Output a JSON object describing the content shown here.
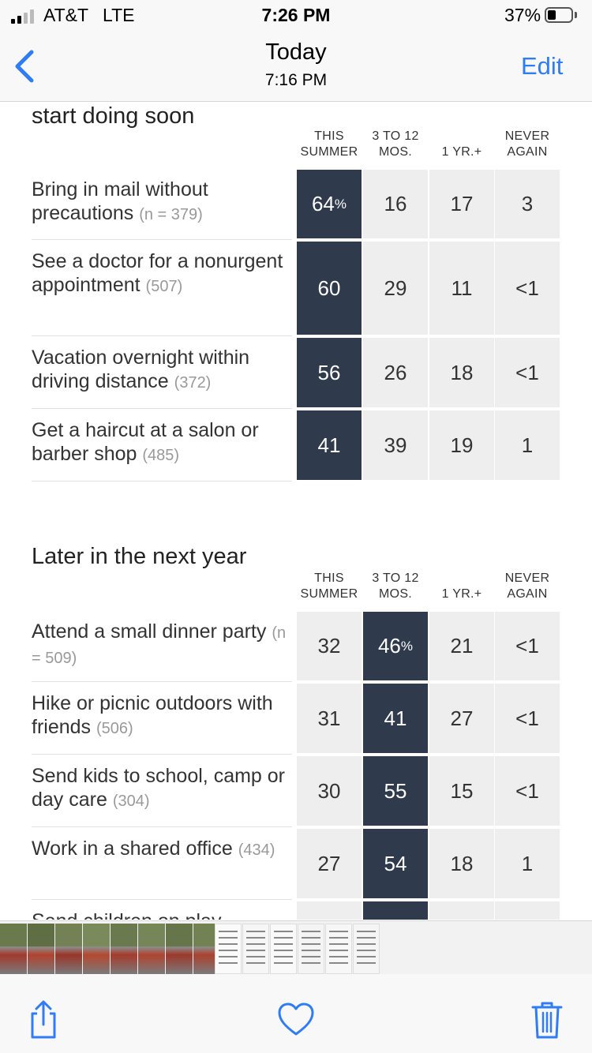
{
  "status_bar": {
    "carrier": "AT&T",
    "network": "LTE",
    "time": "7:26 PM",
    "battery": "37%",
    "battery_level": 0.37
  },
  "nav": {
    "title": "Today",
    "subtitle": "7:16 PM",
    "edit_label": "Edit",
    "back_icon": "chevron-left-icon"
  },
  "columns": [
    {
      "line1": "THIS",
      "line2": "SUMMER"
    },
    {
      "line1": "3 TO 12",
      "line2": "MOS."
    },
    {
      "line1": "",
      "line2": "1 YR.+"
    },
    {
      "line1": "NEVER",
      "line2": "AGAIN"
    }
  ],
  "sections": [
    {
      "title": "start doing soon",
      "rows": [
        {
          "label": "Bring in mail without precautions",
          "n": "(n = 379)",
          "values": [
            "64",
            "16",
            "17",
            "3"
          ],
          "suffix": "%",
          "highlight": 0
        },
        {
          "label": "See a doctor for a nonurgent appointment",
          "n": "(507)",
          "values": [
            "60",
            "29",
            "11",
            "<1"
          ],
          "highlight": 0
        },
        {
          "label": "Vacation overnight within driving distance",
          "n": "(372)",
          "values": [
            "56",
            "26",
            "18",
            "<1"
          ],
          "highlight": 0
        },
        {
          "label": "Get a haircut at a salon or barber shop",
          "n": "(485)",
          "values": [
            "41",
            "39",
            "19",
            "1"
          ],
          "highlight": 0
        }
      ]
    },
    {
      "title": "Later in the next year",
      "rows": [
        {
          "label": "Attend a small dinner party",
          "n": "(n = 509)",
          "values": [
            "32",
            "46",
            "21",
            "<1"
          ],
          "suffix": "%",
          "highlight": 1
        },
        {
          "label": "Hike or picnic outdoors with friends",
          "n": "(506)",
          "values": [
            "31",
            "41",
            "27",
            "<1"
          ],
          "highlight": 1
        },
        {
          "label": "Send kids to school, camp or day care",
          "n": "(304)",
          "values": [
            "30",
            "55",
            "15",
            "<1"
          ],
          "highlight": 1
        },
        {
          "label": "Work in a shared office",
          "n": "(434)",
          "values": [
            "27",
            "54",
            "18",
            "1"
          ],
          "highlight": 1
        },
        {
          "label": "Send children on play",
          "n": "",
          "values": [
            "",
            "",
            "",
            ""
          ],
          "highlight": 1
        }
      ]
    }
  ],
  "colors": {
    "highlight": "#2f3a4d",
    "cell": "#eeeeee",
    "ios_blue": "#2f7cf6"
  },
  "toolbar": {
    "share_icon": "share-icon",
    "favorite_icon": "heart-icon",
    "delete_icon": "trash-icon"
  }
}
